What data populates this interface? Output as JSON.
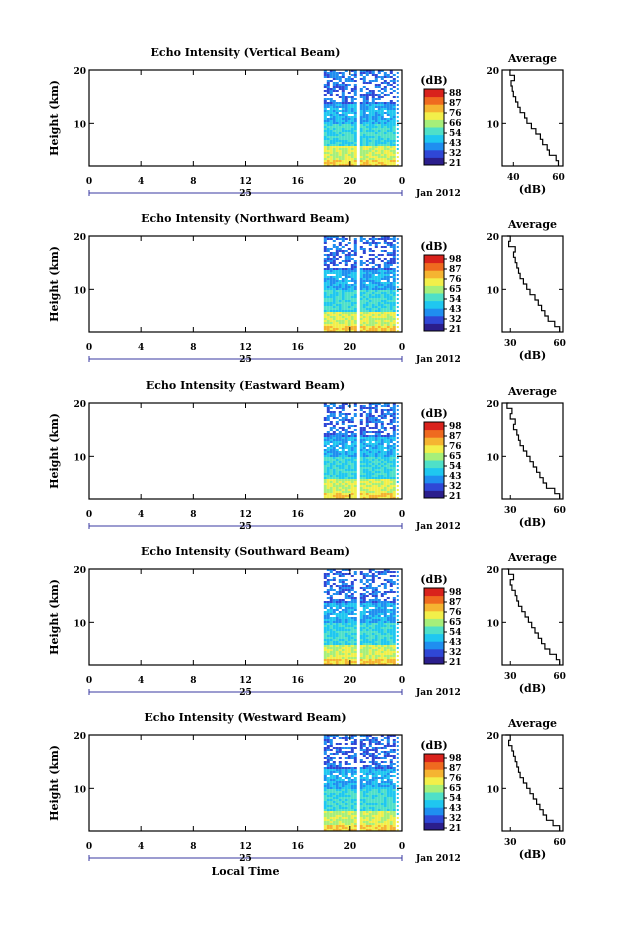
{
  "figure": {
    "x_label": "Local Time",
    "date_label": "Jan 2012",
    "day_label": "25",
    "colorbar_title": "(dB)",
    "avg_title": "Average",
    "avg_xlabel": "(dB)",
    "height_label": "Height (km)"
  },
  "colors": {
    "colormap": [
      "#2b1e8c",
      "#2f47d6",
      "#1f8ef0",
      "#1fc7f0",
      "#4fe0c8",
      "#a6ef7a",
      "#f2ef4a",
      "#f5b431",
      "#ef6a1f",
      "#d9221c"
    ],
    "axis": "#000000",
    "gap": "#ffffff"
  },
  "chart_data": [
    {
      "type": "heatmap",
      "title": "Echo Intensity (Vertical Beam)",
      "xlabel": "",
      "ylabel": "Height (km)",
      "x_ticks": [
        "0",
        "4",
        "8",
        "12",
        "16",
        "20",
        "0"
      ],
      "y_ticks": [
        "20",
        "10"
      ],
      "xlim": [
        0,
        24
      ],
      "ylim": [
        2,
        20
      ],
      "data_x_range": [
        18,
        23.5
      ],
      "data_gap": [
        20.5,
        20.7
      ],
      "colorbar": {
        "label": "(dB)",
        "ticks": [
          "88",
          "87",
          "76",
          "66",
          "54",
          "43",
          "32",
          "21"
        ]
      },
      "average_profile": {
        "title": "Average",
        "xlabel": "(dB)",
        "x_ticks": [
          "40",
          "60"
        ],
        "y_ticks": [
          "20",
          "10"
        ],
        "xlim": [
          35,
          62
        ],
        "ylim": [
          2,
          20
        ],
        "height": [
          2,
          3,
          4,
          5,
          6,
          7,
          8,
          9,
          10,
          11,
          12,
          13,
          14,
          15,
          16,
          17,
          18,
          19,
          20
        ],
        "db": [
          60,
          59,
          56,
          55,
          53,
          52,
          50,
          48,
          46,
          45,
          43,
          42,
          41,
          40,
          39.5,
          39,
          40.5,
          38.5,
          39
        ]
      }
    },
    {
      "type": "heatmap",
      "title": "Echo Intensity (Northward Beam)",
      "xlabel": "",
      "ylabel": "Height (km)",
      "x_ticks": [
        "0",
        "4",
        "8",
        "12",
        "16",
        "20",
        "0"
      ],
      "y_ticks": [
        "20",
        "10"
      ],
      "xlim": [
        0,
        24
      ],
      "ylim": [
        2,
        20
      ],
      "data_x_range": [
        18,
        23.5
      ],
      "data_gap": [
        20.5,
        20.7
      ],
      "colorbar": {
        "label": "(dB)",
        "ticks": [
          "98",
          "87",
          "76",
          "65",
          "54",
          "43",
          "32",
          "21"
        ]
      },
      "average_profile": {
        "title": "Average",
        "xlabel": "(dB)",
        "x_ticks": [
          "30",
          "60"
        ],
        "y_ticks": [
          "20",
          "10"
        ],
        "xlim": [
          25,
          62
        ],
        "ylim": [
          2,
          20
        ],
        "height": [
          2,
          3,
          4,
          5,
          6,
          7,
          8,
          9,
          10,
          11,
          12,
          13,
          14,
          15,
          16,
          17,
          18,
          19,
          20
        ],
        "db": [
          60,
          57,
          53,
          51,
          49,
          47,
          45,
          42,
          40,
          38,
          36,
          35,
          34,
          33,
          32,
          33,
          29,
          30,
          28
        ]
      }
    },
    {
      "type": "heatmap",
      "title": "Echo Intensity (Eastward Beam)",
      "xlabel": "",
      "ylabel": "Height (km)",
      "x_ticks": [
        "0",
        "4",
        "8",
        "12",
        "16",
        "20",
        "0"
      ],
      "y_ticks": [
        "20",
        "10"
      ],
      "xlim": [
        0,
        24
      ],
      "ylim": [
        2,
        20
      ],
      "data_x_range": [
        18,
        23.5
      ],
      "data_gap": [
        20.5,
        20.7
      ],
      "colorbar": {
        "label": "(dB)",
        "ticks": [
          "98",
          "87",
          "76",
          "65",
          "54",
          "43",
          "32",
          "21"
        ]
      },
      "average_profile": {
        "title": "Average",
        "xlabel": "(dB)",
        "x_ticks": [
          "30",
          "60"
        ],
        "y_ticks": [
          "20",
          "10"
        ],
        "xlim": [
          25,
          62
        ],
        "ylim": [
          2,
          20
        ],
        "height": [
          2,
          3,
          4,
          5,
          6,
          7,
          8,
          9,
          10,
          11,
          12,
          13,
          14,
          15,
          16,
          17,
          18,
          19,
          20
        ],
        "db": [
          60,
          57,
          52,
          50,
          48,
          46,
          44,
          42,
          40,
          38,
          36,
          35,
          34,
          32,
          33,
          30,
          31,
          28,
          29
        ]
      }
    },
    {
      "type": "heatmap",
      "title": "Echo Intensity (Southward Beam)",
      "xlabel": "",
      "ylabel": "Height (km)",
      "x_ticks": [
        "0",
        "4",
        "8",
        "12",
        "16",
        "20",
        "0"
      ],
      "y_ticks": [
        "20",
        "10"
      ],
      "xlim": [
        0,
        24
      ],
      "ylim": [
        2,
        20
      ],
      "data_x_range": [
        18,
        23.5
      ],
      "data_gap": [
        20.5,
        20.7
      ],
      "colorbar": {
        "label": "(dB)",
        "ticks": [
          "98",
          "87",
          "76",
          "65",
          "54",
          "43",
          "32",
          "21"
        ]
      },
      "average_profile": {
        "title": "Average",
        "xlabel": "(dB)",
        "x_ticks": [
          "30",
          "60"
        ],
        "y_ticks": [
          "20",
          "10"
        ],
        "xlim": [
          25,
          62
        ],
        "ylim": [
          2,
          20
        ],
        "height": [
          2,
          3,
          4,
          5,
          6,
          7,
          8,
          9,
          10,
          11,
          12,
          13,
          14,
          15,
          16,
          17,
          18,
          19,
          20
        ],
        "db": [
          60,
          58,
          54,
          51,
          49,
          47,
          45,
          43,
          41,
          39,
          37,
          35,
          34,
          33,
          31,
          30,
          32,
          29,
          28
        ]
      }
    },
    {
      "type": "heatmap",
      "title": "Echo Intensity (Westward Beam)",
      "xlabel": "Local Time",
      "ylabel": "Height (km)",
      "x_ticks": [
        "0",
        "4",
        "8",
        "12",
        "16",
        "20",
        "0"
      ],
      "y_ticks": [
        "20",
        "10"
      ],
      "xlim": [
        0,
        24
      ],
      "ylim": [
        2,
        20
      ],
      "data_x_range": [
        18,
        23.5
      ],
      "data_gap": [
        20.5,
        20.7
      ],
      "colorbar": {
        "label": "(dB)",
        "ticks": [
          "98",
          "87",
          "76",
          "65",
          "54",
          "43",
          "32",
          "21"
        ]
      },
      "average_profile": {
        "title": "Average",
        "xlabel": "(dB)",
        "x_ticks": [
          "30",
          "60"
        ],
        "y_ticks": [
          "20",
          "10"
        ],
        "xlim": [
          25,
          62
        ],
        "ylim": [
          2,
          20
        ],
        "height": [
          2,
          3,
          4,
          5,
          6,
          7,
          8,
          9,
          10,
          11,
          12,
          13,
          14,
          15,
          16,
          17,
          18,
          19,
          20
        ],
        "db": [
          60,
          56,
          52,
          50,
          48,
          46,
          44,
          42,
          40,
          38,
          36,
          35,
          34,
          33,
          32,
          31,
          29,
          30,
          27
        ]
      }
    }
  ]
}
